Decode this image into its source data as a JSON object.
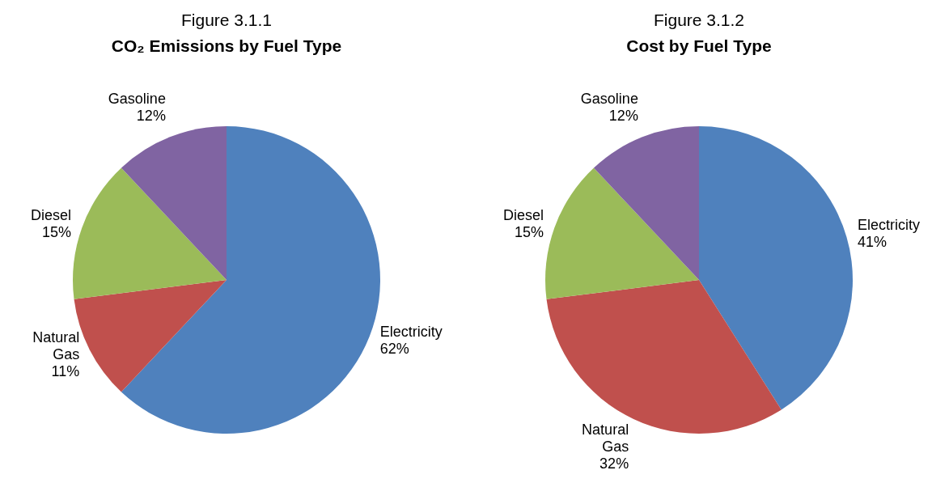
{
  "chart_data": [
    {
      "type": "pie",
      "title": "Figure 3.1.1",
      "subtitle": "CO₂ Emissions by Fuel Type",
      "categories": [
        "Electricity",
        "Natural Gas",
        "Diesel",
        "Gasoline"
      ],
      "values": [
        62,
        11,
        15,
        12
      ],
      "value_labels": [
        "62%",
        "11%",
        "15%",
        "12%"
      ],
      "colors": [
        "#4f81bd",
        "#c0504d",
        "#9bbb59",
        "#8064a2"
      ]
    },
    {
      "type": "pie",
      "title": "Figure 3.1.2",
      "subtitle": "Cost by Fuel Type",
      "categories": [
        "Electricity",
        "Natural Gas",
        "Diesel",
        "Gasoline"
      ],
      "values": [
        41,
        32,
        15,
        12
      ],
      "value_labels": [
        "41%",
        "32%",
        "15%",
        "12%"
      ],
      "colors": [
        "#4f81bd",
        "#c0504d",
        "#9bbb59",
        "#8064a2"
      ]
    }
  ]
}
